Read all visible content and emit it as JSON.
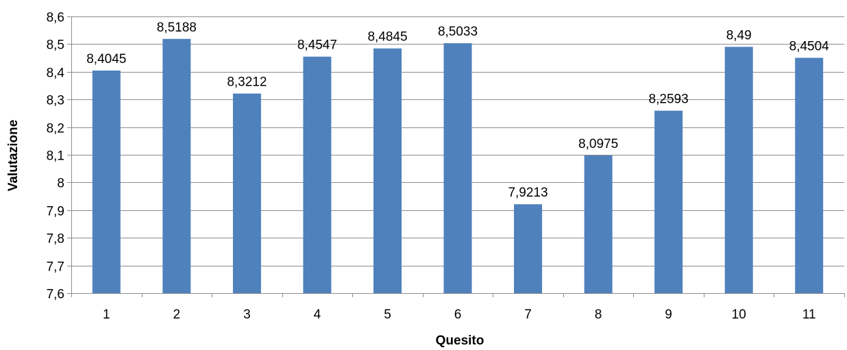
{
  "chart_data": {
    "type": "bar",
    "categories": [
      "1",
      "2",
      "3",
      "4",
      "5",
      "6",
      "7",
      "8",
      "9",
      "10",
      "11"
    ],
    "values": [
      8.4045,
      8.5188,
      8.3212,
      8.4547,
      8.4845,
      8.5033,
      7.9213,
      8.0975,
      8.2593,
      8.49,
      8.4504
    ],
    "data_labels": [
      "8,4045",
      "8,5188",
      "8,3212",
      "8,4547",
      "8,4845",
      "8,5033",
      "7,9213",
      "8,0975",
      "8,2593",
      "8,49",
      "8,4504"
    ],
    "y_ticks": [
      7.6,
      7.7,
      7.8,
      7.9,
      8.0,
      8.1,
      8.2,
      8.3,
      8.4,
      8.5,
      8.6
    ],
    "y_tick_labels": [
      "7,6",
      "7,7",
      "7,8",
      "7,9",
      "8",
      "8,1",
      "8,2",
      "8,3",
      "8,4",
      "8,5",
      "8,6"
    ],
    "title": "",
    "xlabel": "Quesito",
    "ylabel": "Valutazione",
    "ylim": [
      7.6,
      8.6
    ],
    "grid": true,
    "legend": "none",
    "bar_color": "#4f81bd"
  }
}
